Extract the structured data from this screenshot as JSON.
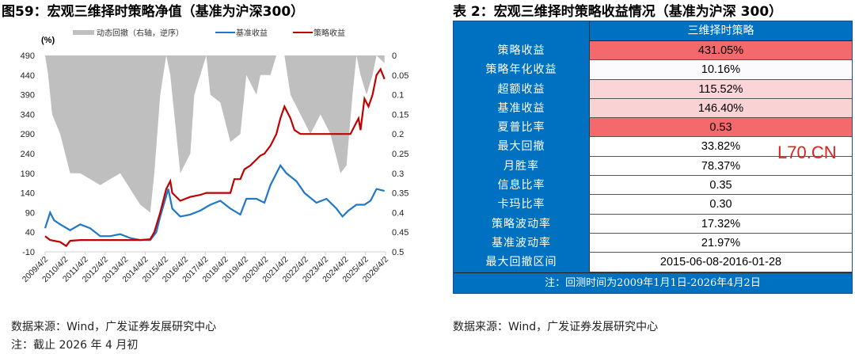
{
  "left": {
    "title": "图59：宏观三维择时策略净值（基准为沪深300）",
    "source": "数据来源：Wind，广发证券发展研究中心",
    "note": "注：截止 2026 年 4 月初"
  },
  "right": {
    "title": "表 2：宏观三维择时策略收益情况（基准为沪深 300）",
    "source": "数据来源：Wind，广发证券发展研究中心",
    "watermark": "L70.CN",
    "table": {
      "header": "三维择时策略",
      "footer": "注：回测时间为2009年1月1日-2026年4月2日",
      "rows": [
        {
          "label": "策略收益",
          "value": "431.05%",
          "color": "#f4696b"
        },
        {
          "label": "策略年化收益",
          "value": "10.16%",
          "color": "#fbfbfe"
        },
        {
          "label": "超额收益",
          "value": "115.52%",
          "color": "#fad4d6"
        },
        {
          "label": "基准收益",
          "value": "146.40%",
          "color": "#f9d2d4"
        },
        {
          "label": "夏普比率",
          "value": "0.53",
          "color": "#f4696b"
        },
        {
          "label": "最大回撤",
          "value": "33.82%",
          "color": "#ffffff"
        },
        {
          "label": "月胜率",
          "value": "78.37%",
          "color": "#ffffff"
        },
        {
          "label": "信息比率",
          "value": "0.35",
          "color": "#ffffff"
        },
        {
          "label": "卡玛比率",
          "value": "0.30",
          "color": "#ffffff"
        },
        {
          "label": "策略波动率",
          "value": "17.32%",
          "color": "#ffffff"
        },
        {
          "label": "基准波动率",
          "value": "21.97%",
          "color": "#ffffff"
        },
        {
          "label": "最大回撤区间",
          "value": "2015-06-08-2016-01-28",
          "color": "#ffffff"
        }
      ]
    }
  },
  "chart_data": {
    "type": "line",
    "unit_label": "(%)",
    "legend": [
      "动态回撤（右轴，逆序）",
      "基准收益",
      "策略收益"
    ],
    "legend_position": "top",
    "colors": {
      "drawdown": "#bfbfbf",
      "benchmark": "#1f77c8",
      "strategy": "#c00000"
    },
    "ylim": [
      -10,
      490
    ],
    "yticks": [
      "490",
      "440",
      "390",
      "340",
      "290",
      "240",
      "190",
      "140",
      "90",
      "40",
      "-10"
    ],
    "y2lim": [
      0,
      0.5
    ],
    "y2ticks": [
      "0",
      "0.05",
      "0.1",
      "0.15",
      "0.2",
      "0.25",
      "0.3",
      "0.35",
      "0.4",
      "0.45",
      "0.5"
    ],
    "xlim": [
      2009.25,
      2026.25
    ],
    "xticks": [
      "2009/4/2",
      "2010/4/2",
      "2011/4/2",
      "2012/4/2",
      "2013/4/2",
      "2014/4/2",
      "2015/4/2",
      "2016/4/2",
      "2017/4/2",
      "2018/4/2",
      "2019/4/2",
      "2020/4/2",
      "2021/4/2",
      "2022/4/2",
      "2023/4/2",
      "2024/4/2",
      "2025/4/2",
      "2026/4/2"
    ],
    "strategy": [
      [
        2009.25,
        30
      ],
      [
        2009.5,
        20
      ],
      [
        2010,
        15
      ],
      [
        2010.3,
        5
      ],
      [
        2010.5,
        18
      ],
      [
        2011,
        20
      ],
      [
        2012,
        20
      ],
      [
        2013,
        20
      ],
      [
        2014,
        20
      ],
      [
        2014.5,
        22
      ],
      [
        2014.7,
        40
      ],
      [
        2015,
        90
      ],
      [
        2015.3,
        150
      ],
      [
        2015.5,
        170
      ],
      [
        2015.6,
        140
      ],
      [
        2015.8,
        130
      ],
      [
        2016,
        120
      ],
      [
        2016.5,
        130
      ],
      [
        2017,
        135
      ],
      [
        2017.3,
        140
      ],
      [
        2018.5,
        140
      ],
      [
        2018.7,
        175
      ],
      [
        2019,
        175
      ],
      [
        2019.2,
        200
      ],
      [
        2019.5,
        210
      ],
      [
        2020,
        235
      ],
      [
        2020.2,
        240
      ],
      [
        2020.5,
        260
      ],
      [
        2020.8,
        290
      ],
      [
        2021,
        330
      ],
      [
        2021.2,
        360
      ],
      [
        2021.5,
        330
      ],
      [
        2021.7,
        300
      ],
      [
        2022,
        290
      ],
      [
        2024.5,
        290
      ],
      [
        2024.7,
        310
      ],
      [
        2024.9,
        330
      ],
      [
        2025,
        300
      ],
      [
        2025.2,
        380
      ],
      [
        2025.4,
        360
      ],
      [
        2025.6,
        390
      ],
      [
        2025.8,
        440
      ],
      [
        2026,
        455
      ],
      [
        2026.2,
        430
      ]
    ],
    "benchmark": [
      [
        2009.25,
        50
      ],
      [
        2009.5,
        90
      ],
      [
        2009.7,
        70
      ],
      [
        2010,
        60
      ],
      [
        2010.5,
        45
      ],
      [
        2011,
        60
      ],
      [
        2011.5,
        50
      ],
      [
        2012,
        30
      ],
      [
        2012.5,
        30
      ],
      [
        2013,
        35
      ],
      [
        2013.5,
        25
      ],
      [
        2014,
        20
      ],
      [
        2014.5,
        20
      ],
      [
        2014.8,
        40
      ],
      [
        2015,
        80
      ],
      [
        2015.4,
        150
      ],
      [
        2015.6,
        100
      ],
      [
        2016,
        80
      ],
      [
        2016.5,
        85
      ],
      [
        2017,
        95
      ],
      [
        2017.5,
        110
      ],
      [
        2018,
        120
      ],
      [
        2018.5,
        100
      ],
      [
        2019,
        85
      ],
      [
        2019.3,
        125
      ],
      [
        2019.8,
        125
      ],
      [
        2020.2,
        115
      ],
      [
        2020.5,
        160
      ],
      [
        2021,
        210
      ],
      [
        2021.3,
        190
      ],
      [
        2021.8,
        170
      ],
      [
        2022.2,
        140
      ],
      [
        2022.8,
        115
      ],
      [
        2023.3,
        125
      ],
      [
        2023.8,
        100
      ],
      [
        2024.1,
        80
      ],
      [
        2024.4,
        95
      ],
      [
        2024.8,
        110
      ],
      [
        2025.2,
        110
      ],
      [
        2025.5,
        120
      ],
      [
        2025.8,
        150
      ],
      [
        2026.2,
        145
      ]
    ],
    "drawdown": [
      [
        2009.25,
        0
      ],
      [
        2009.4,
        0.05
      ],
      [
        2009.6,
        0.15
      ],
      [
        2010,
        0.2
      ],
      [
        2010.5,
        0.3
      ],
      [
        2011,
        0.3
      ],
      [
        2012,
        0.33
      ],
      [
        2013,
        0.3
      ],
      [
        2014,
        0.38
      ],
      [
        2014.5,
        0.4
      ],
      [
        2014.7,
        0.3
      ],
      [
        2015,
        0.1
      ],
      [
        2015.3,
        0
      ],
      [
        2015.5,
        0.05
      ],
      [
        2015.8,
        0.2
      ],
      [
        2016,
        0.3
      ],
      [
        2016.5,
        0.25
      ],
      [
        2016.7,
        0.1
      ],
      [
        2017,
        0.05
      ],
      [
        2017.3,
        0
      ],
      [
        2017.5,
        0.1
      ],
      [
        2018,
        0.12
      ],
      [
        2018.5,
        0.22
      ],
      [
        2019,
        0.2
      ],
      [
        2019.3,
        0.05
      ],
      [
        2019.8,
        0.1
      ],
      [
        2020,
        0.05
      ],
      [
        2020.5,
        0.05
      ],
      [
        2020.8,
        0
      ],
      [
        2021.2,
        0
      ],
      [
        2021.5,
        0.1
      ],
      [
        2022,
        0.15
      ],
      [
        2022.5,
        0.2
      ],
      [
        2023,
        0.15
      ],
      [
        2023.5,
        0.2
      ],
      [
        2024,
        0.3
      ],
      [
        2024.3,
        0.28
      ],
      [
        2024.6,
        0.1
      ],
      [
        2024.8,
        0
      ],
      [
        2025,
        0.05
      ],
      [
        2025.3,
        0.1
      ],
      [
        2025.6,
        0.05
      ],
      [
        2025.8,
        0
      ],
      [
        2026.2,
        0.02
      ]
    ]
  }
}
